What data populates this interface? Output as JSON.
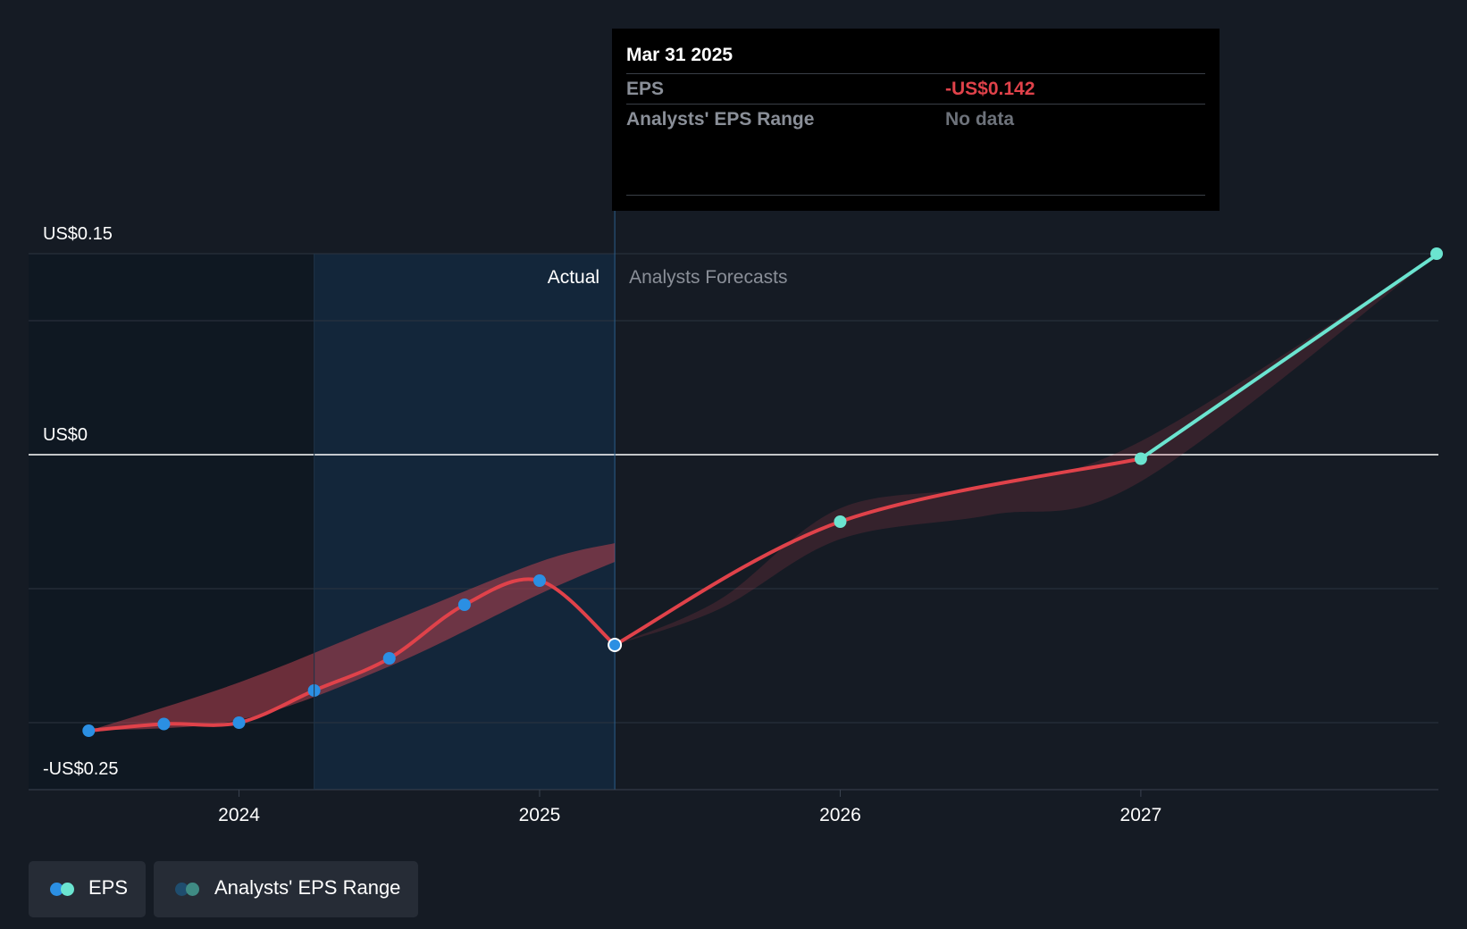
{
  "tooltip": {
    "date": "Mar 31 2025",
    "eps_label": "EPS",
    "eps_value": "-US$0.142",
    "range_label": "Analysts' EPS Range",
    "range_value": "No data"
  },
  "legend": {
    "eps_label": "EPS",
    "range_label": "Analysts' EPS Range"
  },
  "colors": {
    "background": "#151b24",
    "actual_line": "#e0424a",
    "forecast_positive_line": "#6be4d0",
    "actual_point": "#2b8fe3",
    "past_shade": "#0f1822",
    "actual_highlight": "#13263a"
  },
  "chart_data": {
    "type": "line",
    "section_labels": {
      "actual": "Actual",
      "forecast": "Analysts Forecasts"
    },
    "y_tick_labels": [
      {
        "value": 0.15,
        "label": "US$0.15"
      },
      {
        "value": 0,
        "label": "US$0"
      },
      {
        "value": -0.25,
        "label": "-US$0.25"
      }
    ],
    "ylim": [
      -0.25,
      0.15
    ],
    "y_gridlines": [
      0.15,
      0.1,
      0,
      -0.1,
      -0.2,
      -0.25
    ],
    "x_tick_labels": [
      {
        "value": 2024.0,
        "label": "2024"
      },
      {
        "value": 2025.0,
        "label": "2025"
      },
      {
        "value": 2026.0,
        "label": "2026"
      },
      {
        "value": 2027.0,
        "label": "2027"
      }
    ],
    "xlim": [
      2023.3,
      2027.99
    ],
    "actual_start": 2024.25,
    "today": 2025.25,
    "series": [
      {
        "name": "EPS",
        "kind": "actual",
        "points": [
          [
            2023.5,
            -0.206
          ],
          [
            2023.75,
            -0.201
          ],
          [
            2024.0,
            -0.2
          ],
          [
            2024.25,
            -0.176
          ],
          [
            2024.5,
            -0.152
          ],
          [
            2024.75,
            -0.112
          ],
          [
            2025.0,
            -0.094
          ],
          [
            2025.25,
            -0.142
          ]
        ]
      },
      {
        "name": "EPS forecast",
        "kind": "forecast",
        "points": [
          [
            2025.25,
            -0.142
          ],
          [
            2026.0,
            -0.05
          ],
          [
            2027.0,
            -0.003
          ],
          [
            2027.99,
            0.15
          ]
        ]
      }
    ],
    "range_actual": {
      "upper": [
        [
          2023.5,
          -0.206
        ],
        [
          2024.0,
          -0.17
        ],
        [
          2024.5,
          -0.125
        ],
        [
          2025.0,
          -0.08
        ],
        [
          2025.25,
          -0.066
        ]
      ],
      "lower": [
        [
          2023.5,
          -0.206
        ],
        [
          2024.0,
          -0.198
        ],
        [
          2024.5,
          -0.158
        ],
        [
          2025.0,
          -0.104
        ],
        [
          2025.25,
          -0.08
        ]
      ]
    },
    "range_forecast": {
      "upper": [
        [
          2025.25,
          -0.142
        ],
        [
          2025.6,
          -0.108
        ],
        [
          2026.0,
          -0.04
        ],
        [
          2026.5,
          -0.023
        ],
        [
          2027.0,
          0.01
        ],
        [
          2027.99,
          0.15
        ]
      ],
      "lower": [
        [
          2025.25,
          -0.142
        ],
        [
          2025.6,
          -0.115
        ],
        [
          2026.0,
          -0.063
        ],
        [
          2026.5,
          -0.045
        ],
        [
          2027.0,
          -0.02
        ],
        [
          2027.99,
          0.15
        ]
      ]
    }
  }
}
